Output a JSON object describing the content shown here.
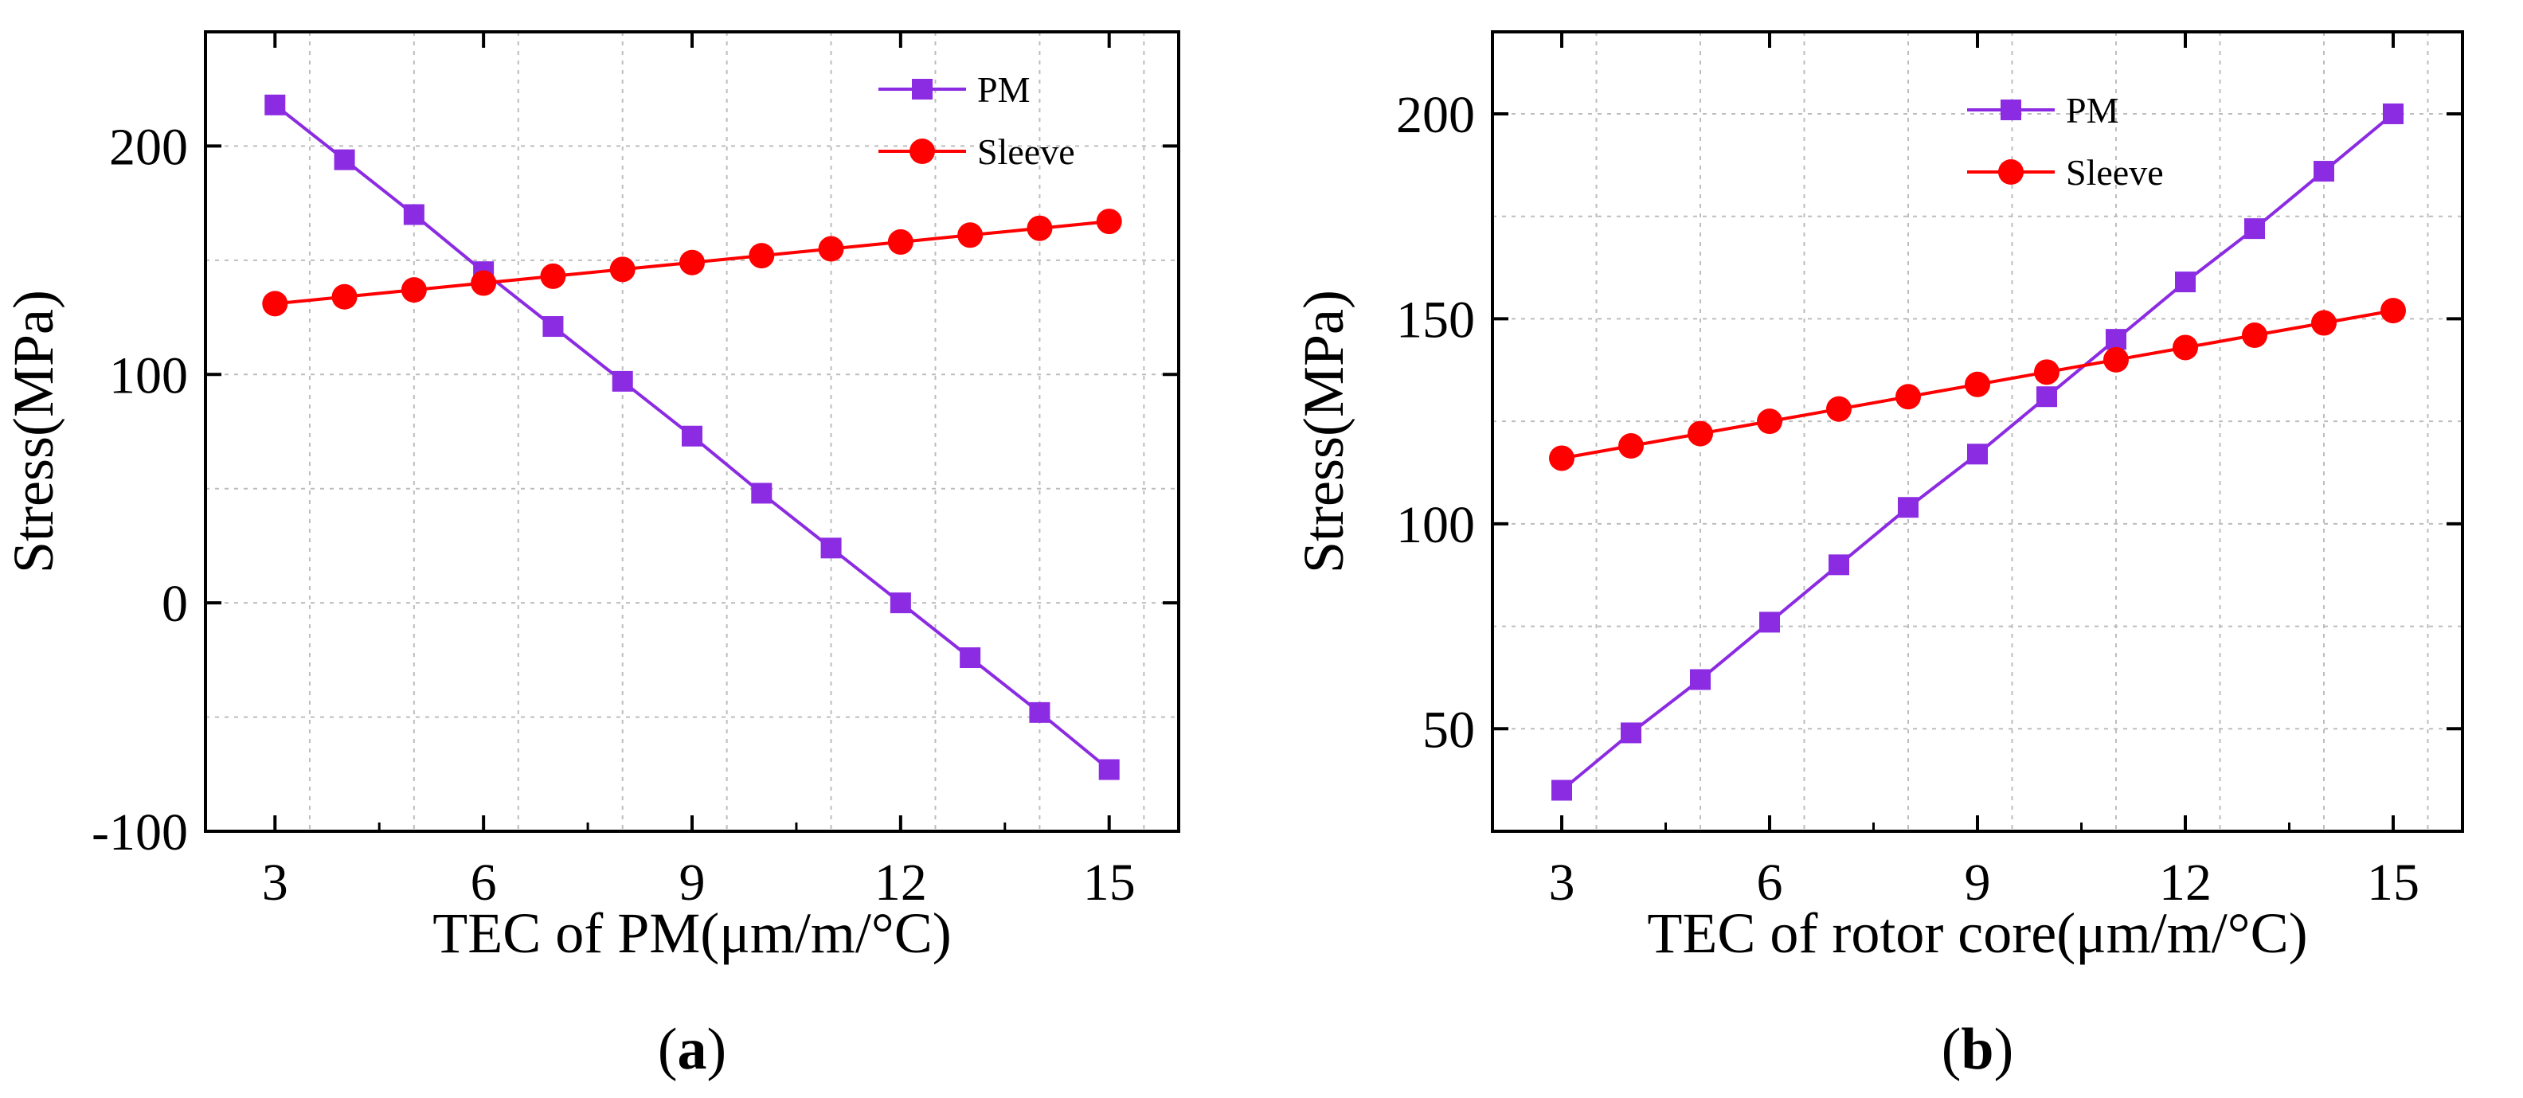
{
  "chart_data": [
    {
      "type": "line",
      "panel": "(a)",
      "caption": {
        "open": "(",
        "letter": "a",
        "close": ")"
      },
      "xlabel": "TEC of PM(μm/m/°C)",
      "ylabel": "Stress(MPa)",
      "xlim": [
        2,
        16
      ],
      "ylim": [
        -100,
        250
      ],
      "xticks": [
        3,
        6,
        9,
        12,
        15
      ],
      "yticks": [
        -100,
        0,
        100,
        200
      ],
      "grid": true,
      "legend_position": "top-right",
      "series": [
        {
          "name": "PM",
          "color": "#8b2be2",
          "marker": "square",
          "x": [
            3,
            4,
            5,
            6,
            7,
            8,
            9,
            10,
            11,
            12,
            13,
            14,
            15
          ],
          "y": [
            218,
            194,
            170,
            145,
            121,
            97,
            73,
            48,
            24,
            0,
            -24,
            -48,
            -73
          ]
        },
        {
          "name": "Sleeve",
          "color": "#ff0000",
          "marker": "circle",
          "x": [
            3,
            4,
            5,
            6,
            7,
            8,
            9,
            10,
            11,
            12,
            13,
            14,
            15
          ],
          "y": [
            131,
            134,
            137,
            140,
            143,
            146,
            149,
            152,
            155,
            158,
            161,
            164,
            167
          ]
        }
      ]
    },
    {
      "type": "line",
      "panel": "(b)",
      "caption": {
        "open": "(",
        "letter": "b",
        "close": ")"
      },
      "xlabel": "TEC of rotor core(μm/m/°C)",
      "ylabel": "Stress(MPa)",
      "xlim": [
        2,
        16
      ],
      "ylim": [
        25,
        220
      ],
      "xticks": [
        3,
        6,
        9,
        12,
        15
      ],
      "yticks": [
        50,
        100,
        150,
        200
      ],
      "grid": true,
      "legend_position": "top-right",
      "series": [
        {
          "name": "PM",
          "color": "#8b2be2",
          "marker": "square",
          "x": [
            3,
            4,
            5,
            6,
            7,
            8,
            9,
            10,
            11,
            12,
            13,
            14,
            15
          ],
          "y": [
            35,
            49,
            62,
            76,
            90,
            104,
            117,
            131,
            145,
            159,
            172,
            186,
            200
          ]
        },
        {
          "name": "Sleeve",
          "color": "#ff0000",
          "marker": "circle",
          "x": [
            3,
            4,
            5,
            6,
            7,
            8,
            9,
            10,
            11,
            12,
            13,
            14,
            15
          ],
          "y": [
            116,
            119,
            122,
            125,
            128,
            131,
            134,
            137,
            140,
            143,
            146,
            149,
            152
          ]
        }
      ]
    }
  ]
}
